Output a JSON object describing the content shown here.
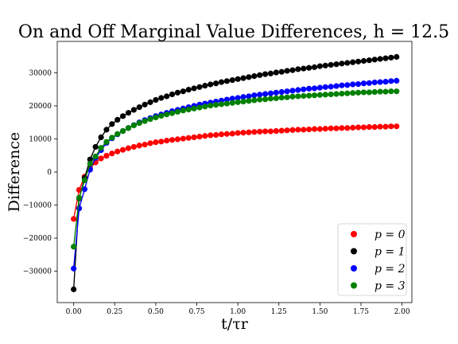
{
  "chart_data": {
    "type": "line",
    "title": "On and Off Marginal Value Differences, h = 12.5",
    "xlabel": "t/τr",
    "ylabel": "Difference",
    "xlim": [
      -0.1,
      2.06
    ],
    "ylim": [
      -39500,
      39500
    ],
    "xticks": [
      0.0,
      0.25,
      0.5,
      0.75,
      1.0,
      1.25,
      1.5,
      1.75,
      2.0
    ],
    "xtick_labels": [
      "0.00",
      "0.25",
      "0.50",
      "0.75",
      "1.00",
      "1.25",
      "1.50",
      "1.75",
      "2.00"
    ],
    "yticks": [
      -30000,
      -20000,
      -10000,
      0,
      10000,
      20000,
      30000
    ],
    "ytick_labels": [
      "−30000",
      "−20000",
      "−10000",
      "0",
      "10000",
      "20000",
      "30000"
    ],
    "grid": false,
    "legend_position": "lower-right",
    "markers": true,
    "x": [
      0.0,
      0.0333,
      0.0667,
      0.1,
      0.1333,
      0.1667,
      0.2,
      0.2333,
      0.2667,
      0.3,
      0.3333,
      0.3667,
      0.4,
      0.4333,
      0.4667,
      0.5,
      0.5333,
      0.5667,
      0.6,
      0.6333,
      0.6667,
      0.7,
      0.7333,
      0.7667,
      0.8,
      0.8333,
      0.8667,
      0.9,
      0.9333,
      0.9667,
      1.0,
      1.0333,
      1.0667,
      1.1,
      1.1333,
      1.1667,
      1.2,
      1.2333,
      1.2667,
      1.3,
      1.3333,
      1.3667,
      1.4,
      1.4333,
      1.4667,
      1.5,
      1.5333,
      1.5667,
      1.6,
      1.6333,
      1.6667,
      1.7,
      1.7333,
      1.7667,
      1.8,
      1.8333,
      1.8667,
      1.9,
      1.9333,
      1.9667
    ],
    "series": [
      {
        "name": "p = 0",
        "color": "#ff0000",
        "values": [
          -14200,
          -5400,
          -1400,
          1200,
          2900,
          4100,
          4900,
          5600,
          6200,
          6700,
          7200,
          7600,
          8000,
          8300,
          8700,
          9000,
          9200,
          9500,
          9700,
          9900,
          10100,
          10300,
          10500,
          10700,
          10900,
          11100,
          11200,
          11400,
          11500,
          11600,
          11800,
          11900,
          12000,
          12100,
          12200,
          12300,
          12300,
          12400,
          12500,
          12600,
          12700,
          12800,
          12800,
          12900,
          13000,
          13000,
          13100,
          13200,
          13200,
          13300,
          13300,
          13400,
          13500,
          13500,
          13600,
          13600,
          13700,
          13700,
          13800,
          13800
        ]
      },
      {
        "name": "p = 1",
        "color": "#000000",
        "values": [
          -35500,
          -8000,
          -1800,
          3800,
          7600,
          10500,
          12800,
          14500,
          15800,
          16900,
          17900,
          18800,
          19600,
          20400,
          21100,
          21800,
          22400,
          22900,
          23500,
          24000,
          24400,
          24900,
          25300,
          25700,
          26100,
          26500,
          26800,
          27200,
          27500,
          27800,
          28100,
          28400,
          28700,
          29000,
          29300,
          29600,
          29800,
          30100,
          30300,
          30600,
          30800,
          31100,
          31300,
          31500,
          31700,
          32000,
          32200,
          32400,
          32600,
          32800,
          33000,
          33200,
          33400,
          33600,
          33800,
          34000,
          34200,
          34400,
          34600,
          34800
        ]
      },
      {
        "name": "p = 2",
        "color": "#0000ff",
        "values": [
          -29200,
          -11000,
          -5200,
          700,
          4300,
          6600,
          8800,
          10200,
          11400,
          12400,
          13300,
          14200,
          15000,
          15700,
          16300,
          16900,
          17400,
          17900,
          18400,
          18800,
          19200,
          19600,
          20000,
          20400,
          20700,
          21000,
          21300,
          21600,
          21900,
          22200,
          22400,
          22700,
          22900,
          23200,
          23400,
          23600,
          23800,
          24000,
          24200,
          24400,
          24600,
          24800,
          25000,
          25200,
          25300,
          25500,
          25700,
          25800,
          26000,
          26200,
          26300,
          26500,
          26600,
          26800,
          26900,
          27100,
          27200,
          27300,
          27500,
          27600
        ]
      },
      {
        "name": "p = 3",
        "color": "#008000",
        "values": [
          -22600,
          -7800,
          -2500,
          2500,
          4700,
          7300,
          9100,
          10400,
          11500,
          12400,
          13300,
          14100,
          14800,
          15400,
          16000,
          16500,
          17000,
          17400,
          17800,
          18200,
          18600,
          18900,
          19200,
          19500,
          19800,
          20100,
          20300,
          20500,
          20700,
          20900,
          21100,
          21300,
          21500,
          21700,
          21900,
          22000,
          22200,
          22300,
          22500,
          22600,
          22800,
          22900,
          23000,
          23100,
          23200,
          23300,
          23400,
          23500,
          23600,
          23700,
          23800,
          23900,
          24000,
          24100,
          24100,
          24200,
          24300,
          24300,
          24400,
          24400
        ]
      }
    ]
  }
}
